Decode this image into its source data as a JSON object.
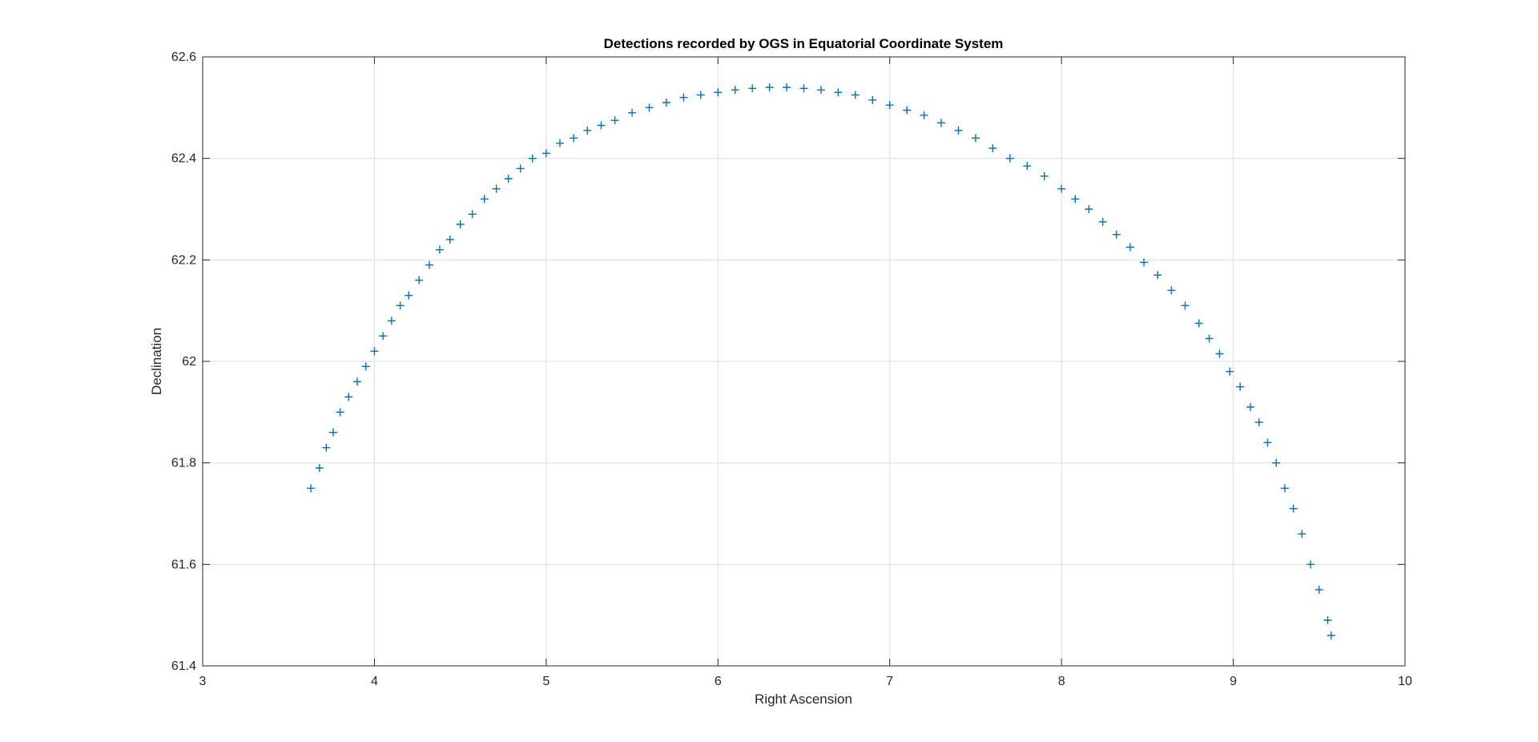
{
  "chart_data": {
    "type": "scatter",
    "title": "Detections recorded by OGS in Equatorial Coordinate System",
    "xlabel": "Right Ascension",
    "ylabel": "Declination",
    "xlim": [
      3,
      10
    ],
    "ylim": [
      61.4,
      62.6
    ],
    "xticks": [
      "3",
      "4",
      "5",
      "6",
      "7",
      "8",
      "9",
      "10"
    ],
    "yticks": [
      "61.4",
      "61.6",
      "61.8",
      "62",
      "62.2",
      "62.4",
      "62.6"
    ],
    "grid": true,
    "marker": "+",
    "colors": {
      "series": "#0072BD",
      "grid": "#dfdfdf",
      "axis": "#262626"
    },
    "series": [
      {
        "x": [
          3.63,
          3.68,
          3.72,
          3.76,
          3.8,
          3.85,
          3.9,
          3.95,
          4.0,
          4.05,
          4.1,
          4.15,
          4.2,
          4.26,
          4.32,
          4.38,
          4.44,
          4.5,
          4.57,
          4.64,
          4.71,
          4.78,
          4.85,
          4.92,
          5.0,
          5.08,
          5.16,
          5.24,
          5.32,
          5.4,
          5.5,
          5.6,
          5.7,
          5.8,
          5.9,
          6.0,
          6.1,
          6.2,
          6.3,
          6.4,
          6.5,
          6.6,
          6.7,
          6.8,
          6.9,
          7.0,
          7.1,
          7.2,
          7.3,
          7.4,
          7.5,
          7.6,
          7.7,
          7.8,
          7.9,
          8.0,
          8.08,
          8.16,
          8.24,
          8.32,
          8.4,
          8.48,
          8.56,
          8.64,
          8.72,
          8.8,
          8.86,
          8.92,
          8.98,
          9.04,
          9.1,
          9.15,
          9.2,
          9.25,
          9.3,
          9.35,
          9.4,
          9.45,
          9.5,
          9.55,
          9.57
        ],
        "y": [
          61.75,
          61.79,
          61.83,
          61.86,
          61.9,
          61.93,
          61.96,
          61.99,
          62.02,
          62.05,
          62.08,
          62.11,
          62.13,
          62.16,
          62.19,
          62.22,
          62.24,
          62.27,
          62.29,
          62.32,
          62.34,
          62.36,
          62.38,
          62.4,
          62.41,
          62.43,
          62.44,
          62.455,
          62.465,
          62.475,
          62.49,
          62.5,
          62.51,
          62.52,
          62.525,
          62.53,
          62.535,
          62.538,
          62.54,
          62.54,
          62.538,
          62.535,
          62.53,
          62.525,
          62.515,
          62.505,
          62.495,
          62.485,
          62.47,
          62.455,
          62.44,
          62.42,
          62.4,
          62.385,
          62.365,
          62.34,
          62.32,
          62.3,
          62.275,
          62.25,
          62.225,
          62.195,
          62.17,
          62.14,
          62.11,
          62.075,
          62.045,
          62.015,
          61.98,
          61.95,
          61.91,
          61.88,
          61.84,
          61.8,
          61.75,
          61.71,
          61.66,
          61.6,
          61.55,
          61.49,
          61.46
        ]
      }
    ]
  }
}
